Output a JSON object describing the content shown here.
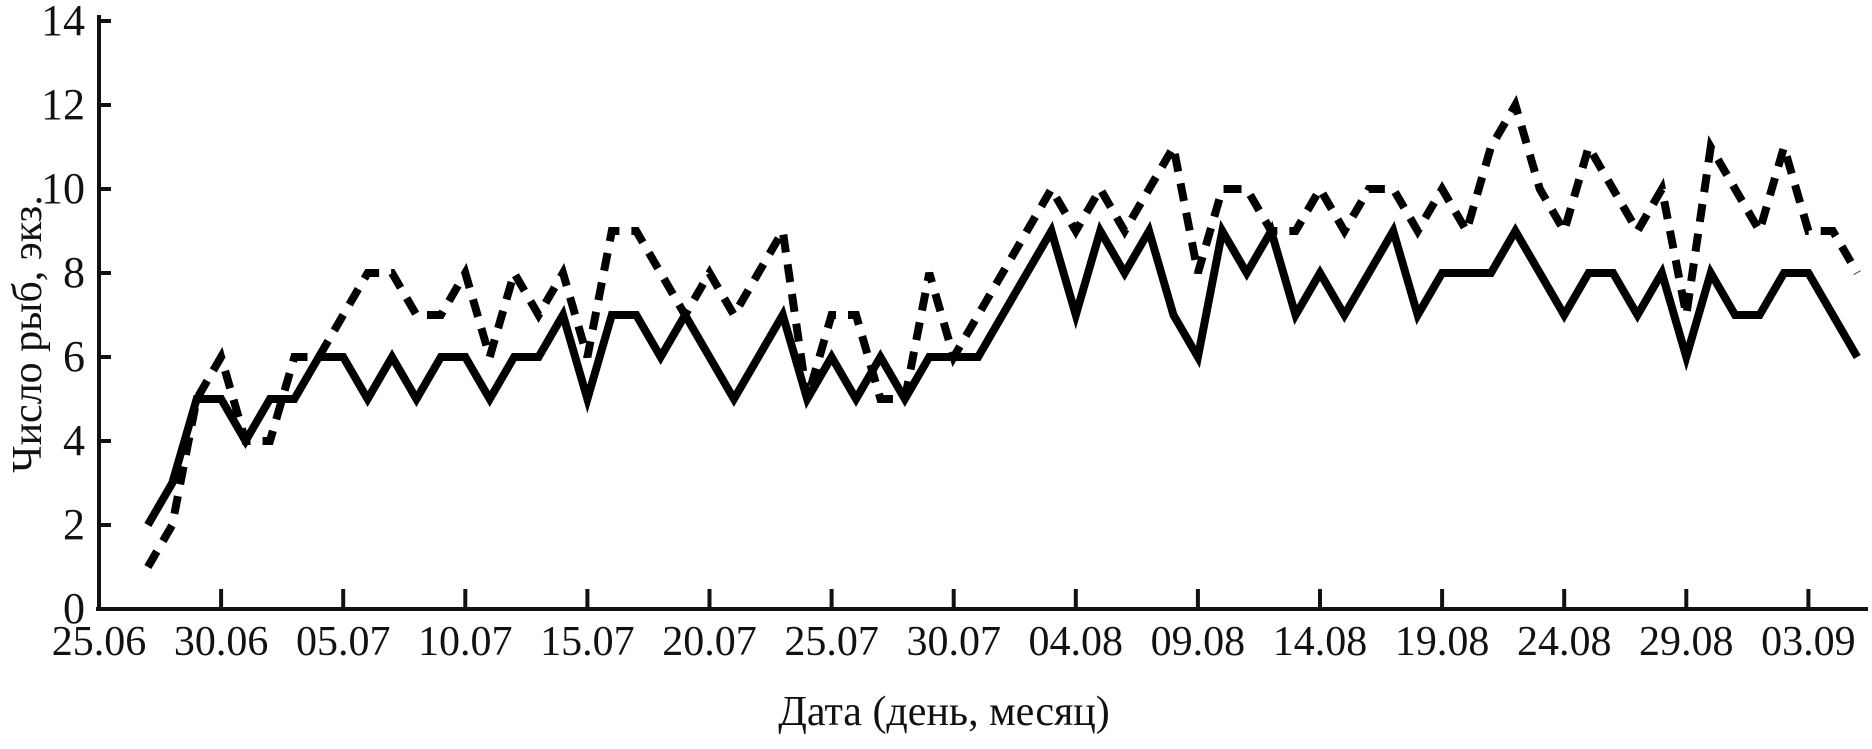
{
  "chart_data": {
    "type": "line",
    "title": "",
    "xlabel": "Дата (день, месяц)",
    "ylabel": "Число рыб, экз.",
    "x_tick_labels": [
      "25.06",
      "30.06",
      "05.07",
      "10.07",
      "15.07",
      "20.07",
      "25.07",
      "30.07",
      "04.08",
      "09.08",
      "14.08",
      "19.08",
      "24.08",
      "29.08",
      "03.09"
    ],
    "x_tick_day_offsets": [
      0,
      5,
      10,
      15,
      20,
      25,
      30,
      35,
      40,
      45,
      50,
      55,
      60,
      65,
      70
    ],
    "y_ticks": [
      0,
      2,
      4,
      6,
      8,
      10,
      12,
      14
    ],
    "ylim": [
      0,
      14
    ],
    "grid": false,
    "legend": "none",
    "x_data_start_offset_days": 2,
    "x_step_days": 1,
    "series": [
      {
        "name": "solid-line",
        "style": "solid",
        "color": "#000000",
        "values": [
          2,
          3,
          5,
          5,
          4,
          5,
          5,
          6,
          6,
          5,
          6,
          5,
          6,
          6,
          5,
          6,
          6,
          7,
          5,
          7,
          7,
          6,
          7,
          6,
          5,
          6,
          7,
          5,
          6,
          5,
          6,
          5,
          6,
          6,
          6,
          7,
          8,
          9,
          7,
          9,
          8,
          9,
          7,
          6,
          9,
          8,
          9,
          7,
          8,
          7,
          8,
          9,
          7,
          8,
          8,
          8,
          9,
          8,
          7,
          8,
          8,
          7,
          8,
          6,
          8,
          7,
          7,
          8,
          8,
          7,
          6
        ]
      },
      {
        "name": "dashed-line",
        "style": "dashed",
        "color": "#000000",
        "values": [
          1,
          2,
          5,
          6,
          4,
          4,
          6,
          6,
          7,
          8,
          8,
          7,
          7,
          8,
          6,
          8,
          7,
          8,
          6,
          9,
          9,
          8,
          7,
          8,
          7,
          8,
          9,
          5,
          7,
          7,
          5,
          5,
          8,
          6,
          7,
          8,
          9,
          10,
          9,
          10,
          9,
          10,
          11,
          8,
          10,
          10,
          9,
          9,
          10,
          9,
          10,
          10,
          9,
          10,
          9,
          11,
          12,
          10,
          9,
          11,
          10,
          9,
          10,
          7,
          11,
          10,
          9,
          11,
          9,
          9,
          8
        ]
      }
    ]
  }
}
